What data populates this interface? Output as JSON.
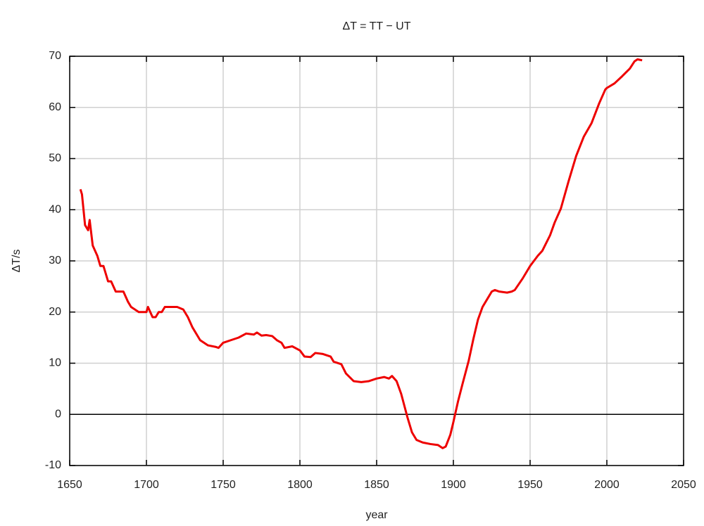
{
  "chart_data": {
    "type": "line",
    "title": "ΔT = TT − UT",
    "x_label": "year",
    "y_label": "ΔT/s",
    "x": [
      1657,
      1658,
      1660,
      1662,
      1663,
      1665,
      1668,
      1670,
      1672,
      1675,
      1677,
      1680,
      1685,
      1688,
      1690,
      1695,
      1700,
      1701,
      1704,
      1706,
      1708,
      1710,
      1712,
      1720,
      1724,
      1727,
      1730,
      1735,
      1740,
      1745,
      1747,
      1750,
      1755,
      1760,
      1765,
      1770,
      1772,
      1775,
      1778,
      1782,
      1785,
      1788,
      1790,
      1795,
      1800,
      1803,
      1807,
      1810,
      1815,
      1820,
      1822,
      1827,
      1830,
      1835,
      1840,
      1845,
      1850,
      1855,
      1858,
      1860,
      1863,
      1866,
      1870,
      1873,
      1876,
      1880,
      1885,
      1890,
      1893,
      1895,
      1898,
      1900,
      1903,
      1906,
      1910,
      1913,
      1916,
      1919,
      1922,
      1925,
      1927,
      1930,
      1935,
      1938,
      1940,
      1945,
      1950,
      1955,
      1958,
      1960,
      1963,
      1966,
      1970,
      1975,
      1980,
      1985,
      1990,
      1995,
      1999,
      2000,
      2005,
      2010,
      2015,
      2018,
      2020,
      2023
    ],
    "values": [
      44,
      43,
      37,
      36,
      38,
      33,
      31,
      29,
      29,
      26,
      26,
      24,
      24,
      22,
      21,
      20,
      20,
      21,
      19,
      19,
      20,
      20,
      21,
      21,
      20.5,
      19,
      17,
      14.5,
      13.5,
      13.2,
      13,
      14,
      14.5,
      15,
      15.8,
      15.6,
      16,
      15.4,
      15.5,
      15.3,
      14.5,
      14,
      13,
      13.3,
      12.5,
      11.3,
      11.2,
      12,
      11.8,
      11.3,
      10.3,
      9.8,
      8,
      6.5,
      6.3,
      6.5,
      7,
      7.3,
      7,
      7.5,
      6.5,
      4,
      -0.5,
      -3.5,
      -5,
      -5.5,
      -5.8,
      -6,
      -6.6,
      -6.3,
      -4,
      -1.5,
      2.5,
      6,
      10.5,
      14.7,
      18.5,
      21,
      22.5,
      24,
      24.3,
      24,
      23.8,
      24,
      24.3,
      26.5,
      29,
      31,
      32,
      33.2,
      35,
      37.5,
      40.2,
      45.5,
      50.5,
      54.3,
      56.9,
      60.8,
      63.5,
      63.8,
      64.7,
      66.1,
      67.6,
      69,
      69.4,
      69.2
    ],
    "color": "#ee0000",
    "xlim": [
      1650,
      2050
    ],
    "xticks": [
      1650,
      1700,
      1750,
      1800,
      1850,
      1900,
      1950,
      2000,
      2050
    ],
    "ylim": [
      -10,
      70
    ],
    "yticks": [
      -10,
      0,
      10,
      20,
      30,
      40,
      50,
      60,
      70
    ],
    "grid": true
  }
}
